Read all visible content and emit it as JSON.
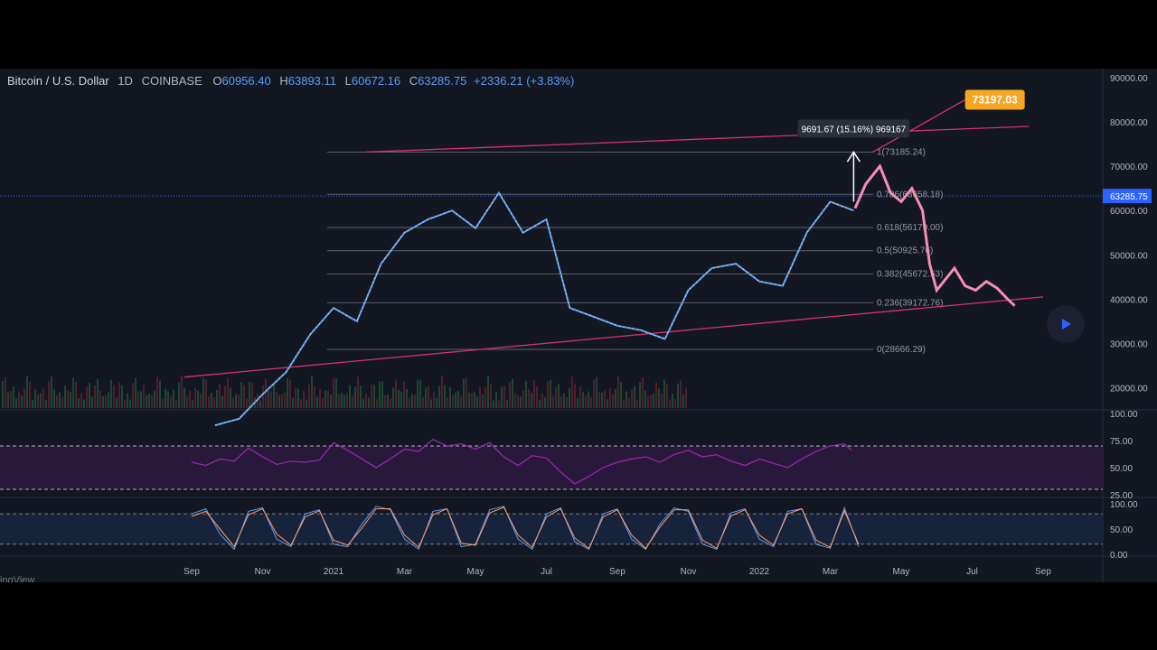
{
  "header": {
    "symbol": "Bitcoin / U.S. Dollar",
    "interval": "1D",
    "exchange": "COINBASE",
    "o_label": "O",
    "o_value": "60956.40",
    "h_label": "H",
    "h_value": "63893.11",
    "l_label": "L",
    "l_value": "60672.16",
    "c_label": "C",
    "c_value": "63285.75",
    "change": "+2336.21 (+3.83%)"
  },
  "colors": {
    "background": "#131722",
    "price_up": "#5b9cf6",
    "price_candle_yellow": "#e6d98a",
    "projection": "#f48fb1",
    "trendline": "#d6336c",
    "rsi": "#9c27b0",
    "stoch_k": "#5b9cf6",
    "stoch_d": "#ff9e6b",
    "price_label_bg": "#2962ff",
    "target_label_bg": "#f5a623"
  },
  "watermark": "ingView",
  "chart_data": [
    {
      "type": "line",
      "title": "Bitcoin / U.S. Dollar",
      "ylim": [
        15000,
        90000
      ],
      "y_ticks": [
        "90000.00",
        "80000.00",
        "70000.00",
        "60000.00",
        "50000.00",
        "40000.00",
        "30000.00",
        "20000.00"
      ],
      "x_ticks": [
        "Sep",
        "Nov",
        "2021",
        "Mar",
        "May",
        "Jul",
        "Sep",
        "Nov",
        "2022",
        "Mar",
        "May",
        "Jul",
        "Sep"
      ],
      "current_price": "63285.75",
      "target_label": "73197.03",
      "measure_label": "9691.67 (15.16%) 969167",
      "fib_levels": [
        {
          "label": "1(73185.24)",
          "value": 73185.24
        },
        {
          "label": "0.786(63658.18)",
          "value": 63658.18
        },
        {
          "label": "0.618(56179.00)",
          "value": 56179.0
        },
        {
          "label": "0.5(50925.76)",
          "value": 50925.76
        },
        {
          "label": "0.382(45672.53)",
          "value": 45672.53
        },
        {
          "label": "0.236(39172.76)",
          "value": 39172.76
        },
        {
          "label": "0(28666.29)",
          "value": 28666.29
        }
      ],
      "series": [
        {
          "values": [
            [
              0.33,
              11500
            ],
            [
              0.67,
              13000
            ],
            [
              1.0,
              18500
            ],
            [
              1.33,
              23500
            ],
            [
              1.67,
              32000
            ],
            [
              2.0,
              38000
            ],
            [
              2.33,
              35000
            ],
            [
              2.67,
              48000
            ],
            [
              3.0,
              55000
            ],
            [
              3.33,
              58000
            ],
            [
              3.67,
              60000
            ],
            [
              4.0,
              56000
            ],
            [
              4.33,
              64000
            ],
            [
              4.67,
              55000
            ],
            [
              5.0,
              58000
            ],
            [
              5.33,
              38000
            ],
            [
              5.67,
              36000
            ],
            [
              6.0,
              34000
            ],
            [
              6.33,
              33000
            ],
            [
              6.67,
              31000
            ],
            [
              7.0,
              42000
            ],
            [
              7.33,
              47000
            ],
            [
              7.67,
              48000
            ],
            [
              8.0,
              44000
            ],
            [
              8.33,
              43000
            ],
            [
              8.67,
              55000
            ],
            [
              9.0,
              62000
            ],
            [
              9.33,
              60000
            ]
          ]
        },
        {
          "values": [
            [
              9.35,
              60500
            ],
            [
              9.5,
              66000
            ],
            [
              9.7,
              70000
            ],
            [
              9.85,
              64000
            ],
            [
              10.0,
              62000
            ],
            [
              10.15,
              65000
            ],
            [
              10.3,
              60000
            ],
            [
              10.4,
              48000
            ],
            [
              10.5,
              42000
            ],
            [
              10.6,
              44000
            ],
            [
              10.75,
              47000
            ],
            [
              10.9,
              43000
            ],
            [
              11.05,
              42000
            ],
            [
              11.2,
              44000
            ],
            [
              11.35,
              42500
            ],
            [
              11.5,
              40000
            ],
            [
              11.6,
              38500
            ]
          ]
        }
      ],
      "trendlines": [
        {
          "from": [
            -0.1,
            22400
          ],
          "to": [
            12.0,
            40500
          ]
        },
        {
          "from": [
            2.46,
            73200
          ],
          "to": [
            11.8,
            79000
          ]
        },
        {
          "from": [
            9.6,
            73200
          ],
          "to": [
            10.9,
            85000
          ]
        }
      ]
    },
    {
      "type": "line",
      "title": "",
      "ylim": [
        25,
        100
      ],
      "y_ticks": [
        "100.00",
        "75.00",
        "50.00",
        "25.00"
      ],
      "bands": [
        70,
        30
      ],
      "series": [
        {
          "values": [
            [
              0.0,
              55
            ],
            [
              0.2,
              52
            ],
            [
              0.4,
              58
            ],
            [
              0.6,
              56
            ],
            [
              0.8,
              68
            ],
            [
              1.0,
              60
            ],
            [
              1.2,
              53
            ],
            [
              1.4,
              56
            ],
            [
              1.6,
              55
            ],
            [
              1.8,
              57
            ],
            [
              2.0,
              73
            ],
            [
              2.2,
              66
            ],
            [
              2.4,
              58
            ],
            [
              2.6,
              50
            ],
            [
              2.8,
              58
            ],
            [
              3.0,
              67
            ],
            [
              3.2,
              65
            ],
            [
              3.4,
              76
            ],
            [
              3.6,
              70
            ],
            [
              3.8,
              72
            ],
            [
              4.0,
              67
            ],
            [
              4.2,
              73
            ],
            [
              4.4,
              60
            ],
            [
              4.6,
              52
            ],
            [
              4.8,
              61
            ],
            [
              5.0,
              59
            ],
            [
              5.2,
              46
            ],
            [
              5.4,
              35
            ],
            [
              5.6,
              42
            ],
            [
              5.8,
              50
            ],
            [
              6.0,
              55
            ],
            [
              6.2,
              58
            ],
            [
              6.4,
              60
            ],
            [
              6.6,
              55
            ],
            [
              6.8,
              62
            ],
            [
              7.0,
              66
            ],
            [
              7.2,
              60
            ],
            [
              7.4,
              62
            ],
            [
              7.6,
              56
            ],
            [
              7.8,
              52
            ],
            [
              8.0,
              58
            ],
            [
              8.2,
              54
            ],
            [
              8.4,
              50
            ],
            [
              8.6,
              58
            ],
            [
              8.8,
              65
            ],
            [
              9.0,
              70
            ],
            [
              9.2,
              72
            ],
            [
              9.3,
              66
            ]
          ]
        }
      ]
    },
    {
      "type": "line",
      "title": "",
      "ylim": [
        0,
        100
      ],
      "y_ticks": [
        "100.00",
        "50.00",
        "0.00"
      ],
      "bands": [
        80,
        20
      ],
      "series": [
        {
          "values": [
            [
              0.0,
              80
            ],
            [
              0.2,
              90
            ],
            [
              0.4,
              40
            ],
            [
              0.6,
              10
            ],
            [
              0.8,
              85
            ],
            [
              1.0,
              92
            ],
            [
              1.2,
              30
            ],
            [
              1.4,
              15
            ],
            [
              1.6,
              80
            ],
            [
              1.8,
              88
            ],
            [
              2.0,
              20
            ],
            [
              2.2,
              15
            ],
            [
              2.4,
              60
            ],
            [
              2.6,
              95
            ],
            [
              2.8,
              88
            ],
            [
              3.0,
              30
            ],
            [
              3.2,
              10
            ],
            [
              3.4,
              85
            ],
            [
              3.6,
              90
            ],
            [
              3.8,
              15
            ],
            [
              4.0,
              20
            ],
            [
              4.2,
              88
            ],
            [
              4.4,
              95
            ],
            [
              4.6,
              30
            ],
            [
              4.8,
              10
            ],
            [
              5.0,
              80
            ],
            [
              5.2,
              92
            ],
            [
              5.4,
              25
            ],
            [
              5.6,
              10
            ],
            [
              5.8,
              80
            ],
            [
              6.0,
              90
            ],
            [
              6.2,
              30
            ],
            [
              6.4,
              10
            ],
            [
              6.6,
              60
            ],
            [
              6.8,
              92
            ],
            [
              7.0,
              85
            ],
            [
              7.2,
              20
            ],
            [
              7.4,
              10
            ],
            [
              7.6,
              82
            ],
            [
              7.8,
              90
            ],
            [
              8.0,
              30
            ],
            [
              8.2,
              15
            ],
            [
              8.4,
              85
            ],
            [
              8.6,
              90
            ],
            [
              8.8,
              20
            ],
            [
              9.0,
              12
            ],
            [
              9.2,
              92
            ],
            [
              9.4,
              15
            ]
          ]
        },
        {
          "values": [
            [
              0.0,
              75
            ],
            [
              0.2,
              85
            ],
            [
              0.4,
              50
            ],
            [
              0.6,
              15
            ],
            [
              0.8,
              78
            ],
            [
              1.0,
              90
            ],
            [
              1.2,
              40
            ],
            [
              1.4,
              18
            ],
            [
              1.6,
              74
            ],
            [
              1.8,
              86
            ],
            [
              2.0,
              28
            ],
            [
              2.2,
              18
            ],
            [
              2.4,
              52
            ],
            [
              2.6,
              90
            ],
            [
              2.8,
              90
            ],
            [
              3.0,
              38
            ],
            [
              3.2,
              14
            ],
            [
              3.4,
              78
            ],
            [
              3.6,
              90
            ],
            [
              3.8,
              22
            ],
            [
              4.0,
              18
            ],
            [
              4.2,
              82
            ],
            [
              4.4,
              93
            ],
            [
              4.6,
              38
            ],
            [
              4.8,
              14
            ],
            [
              5.0,
              74
            ],
            [
              5.2,
              90
            ],
            [
              5.4,
              32
            ],
            [
              5.6,
              12
            ],
            [
              5.8,
              74
            ],
            [
              6.0,
              88
            ],
            [
              6.2,
              38
            ],
            [
              6.4,
              12
            ],
            [
              6.6,
              54
            ],
            [
              6.8,
              88
            ],
            [
              7.0,
              88
            ],
            [
              7.2,
              28
            ],
            [
              7.4,
              12
            ],
            [
              7.6,
              76
            ],
            [
              7.8,
              88
            ],
            [
              8.0,
              38
            ],
            [
              8.2,
              18
            ],
            [
              8.4,
              80
            ],
            [
              8.6,
              90
            ],
            [
              8.8,
              28
            ],
            [
              9.0,
              14
            ],
            [
              9.2,
              86
            ],
            [
              9.4,
              20
            ]
          ]
        }
      ]
    }
  ]
}
